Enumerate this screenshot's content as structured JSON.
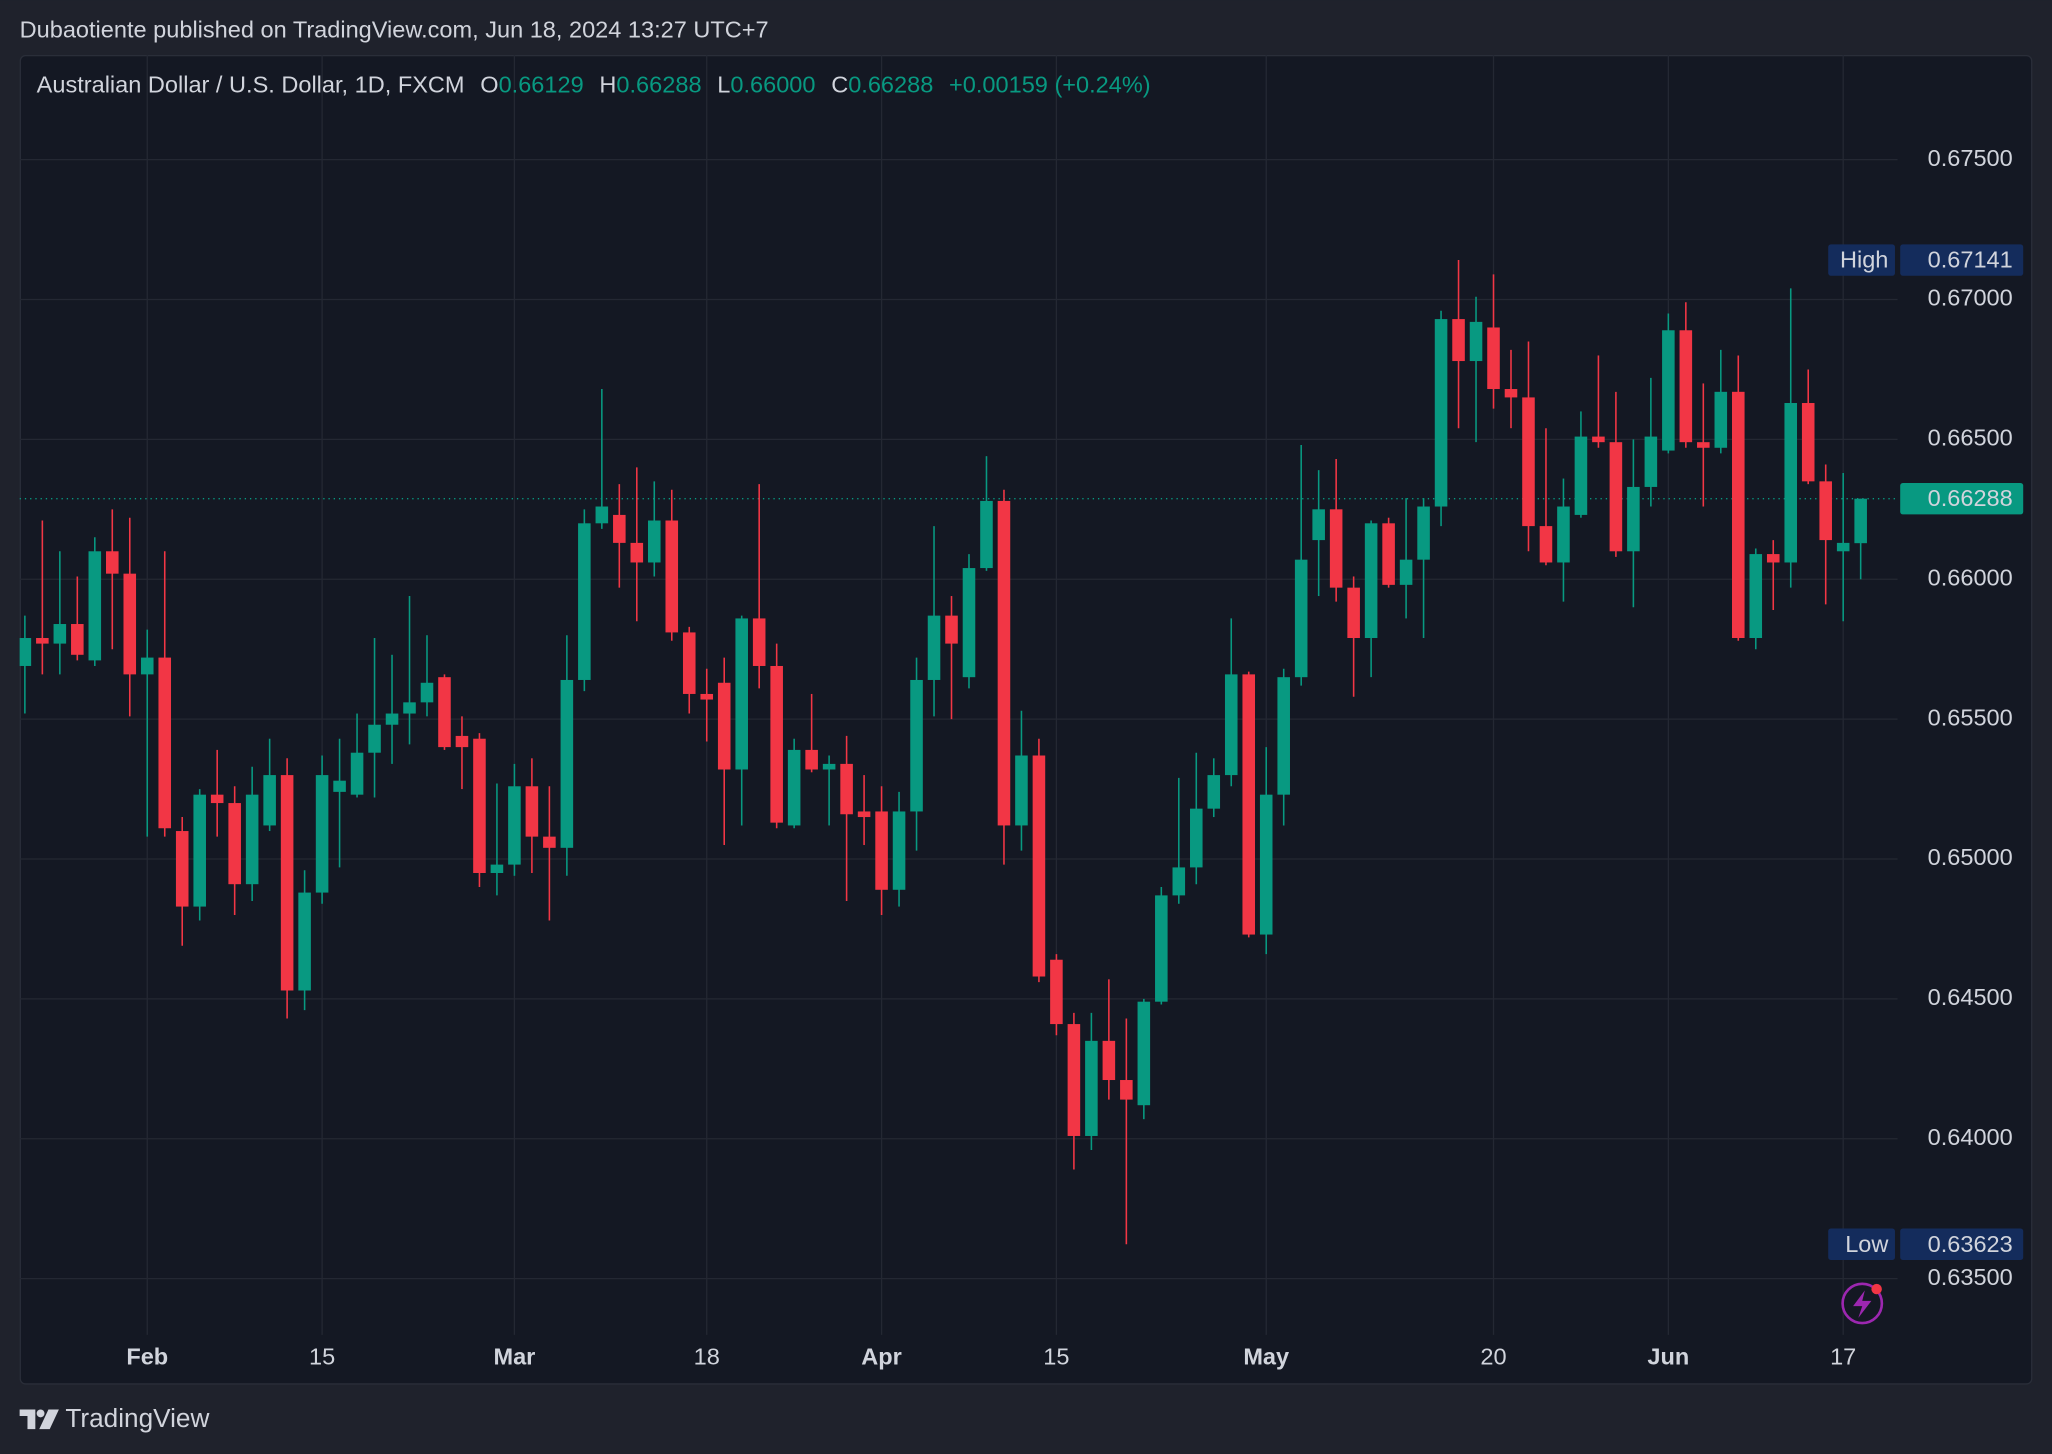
{
  "header": {
    "published": "Dubaotiente published on TradingView.com, Jun 18, 2024 13:27 UTC+7"
  },
  "chart_data": {
    "type": "candlestick",
    "title": "Australian Dollar / U.S. Dollar, 1D, FXCM",
    "ohlc_legend": [
      {
        "key": "O",
        "value": "0.66129"
      },
      {
        "key": "H",
        "value": "0.66288"
      },
      {
        "key": "L",
        "value": "0.66000"
      },
      {
        "key": "C",
        "value": "0.66288"
      }
    ],
    "change": "+0.00159 (+0.24%)",
    "categories": [
      null,
      null,
      null,
      null,
      null,
      null,
      null,
      "Feb",
      null,
      null,
      null,
      null,
      null,
      null,
      null,
      null,
      null,
      "15",
      null,
      null,
      null,
      null,
      null,
      null,
      null,
      null,
      null,
      null,
      "Mar",
      null,
      null,
      null,
      null,
      null,
      null,
      null,
      null,
      null,
      null,
      "18",
      null,
      null,
      null,
      null,
      null,
      null,
      null,
      null,
      null,
      "Apr",
      null,
      null,
      null,
      null,
      null,
      null,
      null,
      null,
      null,
      "15",
      null,
      null,
      null,
      null,
      null,
      null,
      null,
      null,
      null,
      null,
      null,
      "May",
      null,
      null,
      null,
      null,
      null,
      null,
      null,
      null,
      null,
      null,
      null,
      null,
      "20",
      null,
      null,
      null,
      null,
      null,
      null,
      null,
      null,
      null,
      "Jun",
      null,
      null,
      null,
      null,
      null,
      null,
      null,
      null,
      null,
      "17",
      null
    ],
    "open": [
      0.6569,
      0.6579,
      0.6577,
      0.6584,
      0.6571,
      0.661,
      0.6602,
      0.6566,
      0.6572,
      0.651,
      0.6483,
      0.6523,
      0.652,
      0.6491,
      0.6512,
      0.653,
      0.6453,
      0.6488,
      0.6524,
      0.6523,
      0.6538,
      0.6548,
      0.6552,
      0.6556,
      0.6565,
      0.6544,
      0.6543,
      0.6495,
      0.6498,
      0.6526,
      0.6508,
      0.6504,
      0.6564,
      0.662,
      0.6623,
      0.6613,
      0.6606,
      0.6621,
      0.6581,
      0.6559,
      0.6563,
      0.6532,
      0.6586,
      0.6569,
      0.6512,
      0.6539,
      0.6532,
      0.6534,
      0.6517,
      0.6517,
      0.6489,
      0.6517,
      0.6564,
      0.6587,
      0.6565,
      0.6604,
      0.6628,
      0.6512,
      0.6537,
      0.6464,
      0.6441,
      0.6401,
      0.6435,
      0.6421,
      0.6412,
      0.6449,
      0.6487,
      0.6497,
      0.6518,
      0.653,
      0.6566,
      0.6473,
      0.6523,
      0.6565,
      0.6614,
      0.6625,
      0.6597,
      0.6579,
      0.662,
      0.6598,
      0.6607,
      0.6626,
      0.6693,
      0.6678,
      0.669,
      0.6668,
      0.6665,
      0.6619,
      0.6606,
      0.6623,
      0.6651,
      0.6649,
      0.661,
      0.6633,
      0.6646,
      0.6689,
      0.6649,
      0.6647,
      0.6667,
      0.6579,
      0.6609,
      0.6606,
      0.6663,
      0.6635,
      0.661,
      0.66129
    ],
    "high": [
      0.6587,
      0.6621,
      0.661,
      0.6601,
      0.6615,
      0.6625,
      0.6622,
      0.6582,
      0.661,
      0.6515,
      0.6525,
      0.6539,
      0.6526,
      0.6533,
      0.6543,
      0.6536,
      0.6496,
      0.6537,
      0.6543,
      0.6552,
      0.6579,
      0.6573,
      0.6594,
      0.658,
      0.6566,
      0.6551,
      0.6545,
      0.6527,
      0.6534,
      0.6536,
      0.6526,
      0.658,
      0.6625,
      0.6668,
      0.6634,
      0.664,
      0.6635,
      0.6632,
      0.6583,
      0.6568,
      0.6572,
      0.6587,
      0.6634,
      0.6577,
      0.6543,
      0.6559,
      0.6537,
      0.6544,
      0.653,
      0.6526,
      0.6524,
      0.6572,
      0.6619,
      0.6594,
      0.6609,
      0.6644,
      0.6632,
      0.6553,
      0.6543,
      0.6466,
      0.6445,
      0.6445,
      0.6457,
      0.6443,
      0.645,
      0.649,
      0.6529,
      0.6538,
      0.6536,
      0.6586,
      0.6567,
      0.654,
      0.6568,
      0.6648,
      0.6639,
      0.6643,
      0.6601,
      0.6621,
      0.6622,
      0.6629,
      0.6629,
      0.6696,
      0.67141,
      0.6701,
      0.6709,
      0.6682,
      0.6685,
      0.6654,
      0.6636,
      0.666,
      0.668,
      0.6667,
      0.665,
      0.6672,
      0.6695,
      0.6699,
      0.667,
      0.6682,
      0.668,
      0.6611,
      0.6614,
      0.6704,
      0.6675,
      0.6641,
      0.6638,
      0.66288
    ],
    "low": [
      0.6552,
      0.6566,
      0.6566,
      0.6571,
      0.6569,
      0.6575,
      0.6551,
      0.6508,
      0.6508,
      0.6469,
      0.6478,
      0.6508,
      0.648,
      0.6485,
      0.651,
      0.6443,
      0.6446,
      0.6484,
      0.6497,
      0.6522,
      0.6522,
      0.6534,
      0.6541,
      0.6551,
      0.6539,
      0.6525,
      0.649,
      0.6487,
      0.6494,
      0.6495,
      0.6478,
      0.6494,
      0.656,
      0.6618,
      0.6597,
      0.6585,
      0.6601,
      0.6578,
      0.6552,
      0.6542,
      0.6505,
      0.6512,
      0.6561,
      0.6511,
      0.6511,
      0.6531,
      0.6512,
      0.6485,
      0.6505,
      0.648,
      0.6483,
      0.6503,
      0.6551,
      0.655,
      0.6561,
      0.6603,
      0.6498,
      0.6503,
      0.6456,
      0.6437,
      0.6389,
      0.6396,
      0.6414,
      0.63623,
      0.6407,
      0.6448,
      0.6484,
      0.6491,
      0.6515,
      0.6526,
      0.6472,
      0.6466,
      0.6512,
      0.6562,
      0.6594,
      0.6592,
      0.6558,
      0.6565,
      0.6597,
      0.6586,
      0.6579,
      0.6619,
      0.6654,
      0.6649,
      0.6661,
      0.6654,
      0.661,
      0.6605,
      0.6592,
      0.6622,
      0.6647,
      0.6608,
      0.659,
      0.6626,
      0.6645,
      0.6647,
      0.6626,
      0.6645,
      0.6578,
      0.6575,
      0.6589,
      0.6597,
      0.6634,
      0.6591,
      0.6585,
      0.66
    ],
    "close": [
      0.6579,
      0.6577,
      0.6584,
      0.6573,
      0.661,
      0.6602,
      0.6566,
      0.6572,
      0.6511,
      0.6483,
      0.6523,
      0.652,
      0.6491,
      0.6523,
      0.653,
      0.6453,
      0.6488,
      0.653,
      0.6528,
      0.6538,
      0.6548,
      0.6552,
      0.6556,
      0.6563,
      0.654,
      0.654,
      0.6495,
      0.6498,
      0.6526,
      0.6508,
      0.6504,
      0.6564,
      0.662,
      0.6626,
      0.6613,
      0.6606,
      0.6621,
      0.6581,
      0.6559,
      0.6557,
      0.6532,
      0.6586,
      0.6569,
      0.6513,
      0.6539,
      0.6532,
      0.6534,
      0.6516,
      0.6515,
      0.6489,
      0.6517,
      0.6564,
      0.6587,
      0.6577,
      0.6604,
      0.6628,
      0.6512,
      0.6537,
      0.6458,
      0.6441,
      0.6401,
      0.6435,
      0.6421,
      0.6414,
      0.6449,
      0.6487,
      0.6497,
      0.6518,
      0.653,
      0.6566,
      0.6473,
      0.6523,
      0.6565,
      0.6607,
      0.6625,
      0.6597,
      0.6579,
      0.662,
      0.6598,
      0.6607,
      0.6626,
      0.6693,
      0.6678,
      0.6692,
      0.6668,
      0.6665,
      0.6619,
      0.6606,
      0.6626,
      0.6651,
      0.6649,
      0.661,
      0.6633,
      0.6651,
      0.6689,
      0.6649,
      0.6647,
      0.6667,
      0.6579,
      0.6609,
      0.6606,
      0.6663,
      0.6635,
      0.6614,
      0.6613,
      0.66288
    ],
    "up_color": "#089981",
    "down_color": "#f23645",
    "ylim": [
      0.63299,
      0.67874
    ],
    "yticks": [
      {
        "value": 0.635,
        "label": "0.63500"
      },
      {
        "value": 0.64,
        "label": "0.64000"
      },
      {
        "value": 0.645,
        "label": "0.64500"
      },
      {
        "value": 0.65,
        "label": "0.65000"
      },
      {
        "value": 0.655,
        "label": "0.65500"
      },
      {
        "value": 0.66,
        "label": "0.66000"
      },
      {
        "value": 0.665,
        "label": "0.66500"
      },
      {
        "value": 0.67,
        "label": "0.67000"
      },
      {
        "value": 0.675,
        "label": "0.67500"
      }
    ],
    "grid": true,
    "high_marker": {
      "label": "High",
      "value": 0.67141
    },
    "low_marker": {
      "label": "Low",
      "value": 0.63623
    },
    "last_price_line": true
  },
  "footer": {
    "brand": "TradingView"
  }
}
